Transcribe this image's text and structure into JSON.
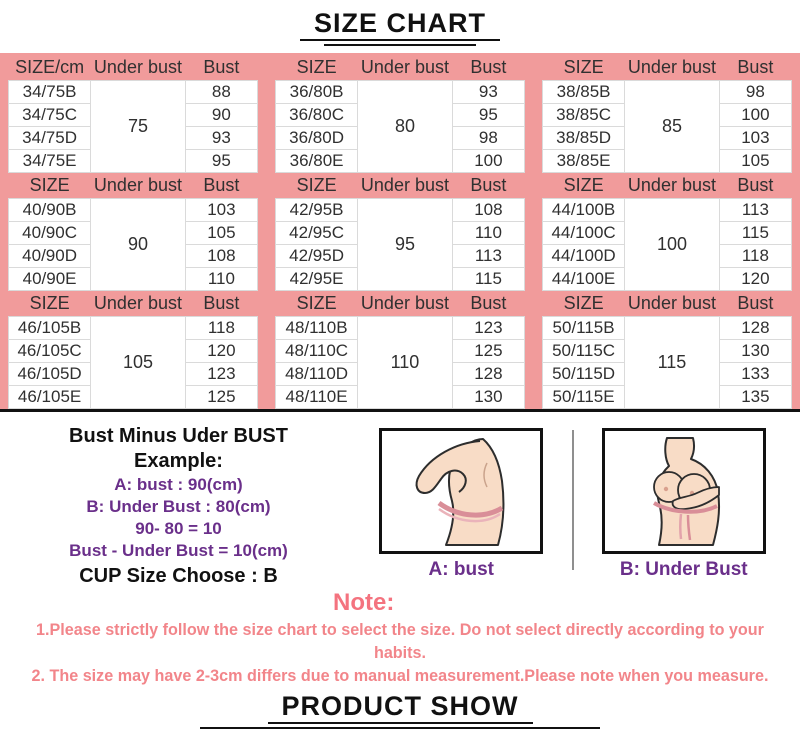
{
  "title": "SIZE CHART",
  "product_show_title": "PRODUCT SHOW",
  "colors": {
    "table_pink": "#f19b9b",
    "note_red": "#f2858a",
    "note_label_red": "#f4737f",
    "purple": "#6a2f8a"
  },
  "size_chart": {
    "groups": [
      [
        {
          "headers": [
            "SIZE/cm",
            "Under bust",
            "Bust"
          ],
          "under_bust": "75",
          "rows": [
            [
              "34/75B",
              "88"
            ],
            [
              "34/75C",
              "90"
            ],
            [
              "34/75D",
              "93"
            ],
            [
              "34/75E",
              "95"
            ]
          ]
        },
        {
          "headers": [
            "SIZE",
            "Under bust",
            "Bust"
          ],
          "under_bust": "80",
          "rows": [
            [
              "36/80B",
              "93"
            ],
            [
              "36/80C",
              "95"
            ],
            [
              "36/80D",
              "98"
            ],
            [
              "36/80E",
              "100"
            ]
          ]
        },
        {
          "headers": [
            "SIZE",
            "Under bust",
            "Bust"
          ],
          "under_bust": "85",
          "rows": [
            [
              "38/85B",
              "98"
            ],
            [
              "38/85C",
              "100"
            ],
            [
              "38/85D",
              "103"
            ],
            [
              "38/85E",
              "105"
            ]
          ]
        }
      ],
      [
        {
          "headers": [
            "SIZE",
            "Under bust",
            "Bust"
          ],
          "under_bust": "90",
          "rows": [
            [
              "40/90B",
              "103"
            ],
            [
              "40/90C",
              "105"
            ],
            [
              "40/90D",
              "108"
            ],
            [
              "40/90E",
              "110"
            ]
          ]
        },
        {
          "headers": [
            "SIZE",
            "Under bust",
            "Bust"
          ],
          "under_bust": "95",
          "rows": [
            [
              "42/95B",
              "108"
            ],
            [
              "42/95C",
              "110"
            ],
            [
              "42/95D",
              "113"
            ],
            [
              "42/95E",
              "115"
            ]
          ]
        },
        {
          "headers": [
            "SIZE",
            "Under bust",
            "Bust"
          ],
          "under_bust": "100",
          "rows": [
            [
              "44/100B",
              "113"
            ],
            [
              "44/100C",
              "115"
            ],
            [
              "44/100D",
              "118"
            ],
            [
              "44/100E",
              "120"
            ]
          ]
        }
      ],
      [
        {
          "headers": [
            "SIZE",
            "Under bust",
            "Bust"
          ],
          "under_bust": "105",
          "rows": [
            [
              "46/105B",
              "118"
            ],
            [
              "46/105C",
              "120"
            ],
            [
              "46/105D",
              "123"
            ],
            [
              "46/105E",
              "125"
            ]
          ]
        },
        {
          "headers": [
            "SIZE",
            "Under bust",
            "Bust"
          ],
          "under_bust": "110",
          "rows": [
            [
              "48/110B",
              "123"
            ],
            [
              "48/110C",
              "125"
            ],
            [
              "48/110D",
              "128"
            ],
            [
              "48/110E",
              "130"
            ]
          ]
        },
        {
          "headers": [
            "SIZE",
            "Under bust",
            "Bust"
          ],
          "under_bust": "115",
          "rows": [
            [
              "50/115B",
              "128"
            ],
            [
              "50/115C",
              "130"
            ],
            [
              "50/115D",
              "133"
            ],
            [
              "50/115E",
              "135"
            ]
          ]
        }
      ]
    ]
  },
  "example": {
    "title": "Bust Minus Uder BUST",
    "subtitle": "Example:",
    "lines": [
      "A: bust : 90(cm)",
      "B: Under Bust : 80(cm)",
      "90- 80 = 10",
      "Bust - Under Bust = 10(cm)"
    ],
    "cup_line": "CUP Size Choose : B"
  },
  "figures": {
    "a_caption": "A: bust",
    "b_caption": "B: Under Bust"
  },
  "note": {
    "label": "Note:",
    "lines": [
      "1.Please strictly follow the size chart to select the size. Do not select directly according to your habits.",
      "2. The size may have 2-3cm differs due to manual measurement.Please note when you measure."
    ]
  }
}
